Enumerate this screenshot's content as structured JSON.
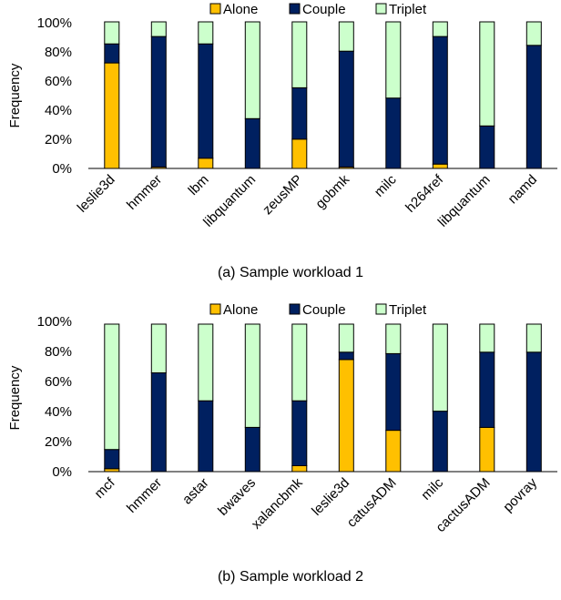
{
  "colors": {
    "alone": "#FFC000",
    "couple": "#002060",
    "triplet": "#CCFFCC",
    "stroke": "#000000"
  },
  "chart_data": [
    {
      "type": "bar",
      "stacked": true,
      "title": "",
      "caption": "(a) Sample workload 1",
      "ylabel": "Frequency",
      "xlabel": "",
      "ylim": [
        0,
        100
      ],
      "yticks": [
        "0%",
        "20%",
        "40%",
        "60%",
        "80%",
        "100%"
      ],
      "legend_position": "top",
      "categories": [
        "leslie3d",
        "hmmer",
        "lbm",
        "libquantum",
        "zeusMP",
        "gobmk",
        "milc",
        "h264ref",
        "libquantum",
        "namd"
      ],
      "series": [
        {
          "name": "Alone",
          "values": [
            72,
            1,
            7,
            0,
            20,
            1,
            0,
            3,
            0,
            0
          ]
        },
        {
          "name": "Couple",
          "values": [
            13,
            89,
            78,
            34,
            35,
            79,
            48,
            87,
            29,
            84
          ]
        },
        {
          "name": "Triplet",
          "values": [
            15,
            10,
            15,
            66,
            45,
            20,
            52,
            10,
            71,
            16
          ]
        }
      ]
    },
    {
      "type": "bar",
      "stacked": true,
      "title": "",
      "caption": "(b) Sample workload 2",
      "ylabel": "Frequency",
      "xlabel": "",
      "ylim": [
        0,
        100
      ],
      "yticks": [
        "0%",
        "20%",
        "40%",
        "60%",
        "80%",
        "100%"
      ],
      "legend_position": "top",
      "categories": [
        "mcf",
        "hmmer",
        "astar",
        "bwaves",
        "xalancbmk",
        "leslie3d",
        "catusADM",
        "milc",
        "cactusADM",
        "povray"
      ],
      "series": [
        {
          "name": "Alone",
          "values": [
            2,
            0,
            0,
            0,
            4,
            76,
            28,
            0,
            30,
            0
          ]
        },
        {
          "name": "Couple",
          "values": [
            13,
            67,
            48,
            30,
            44,
            5,
            52,
            41,
            51,
            81
          ]
        },
        {
          "name": "Triplet",
          "values": [
            85,
            33,
            52,
            70,
            52,
            19,
            20,
            59,
            19,
            19
          ]
        }
      ]
    }
  ]
}
